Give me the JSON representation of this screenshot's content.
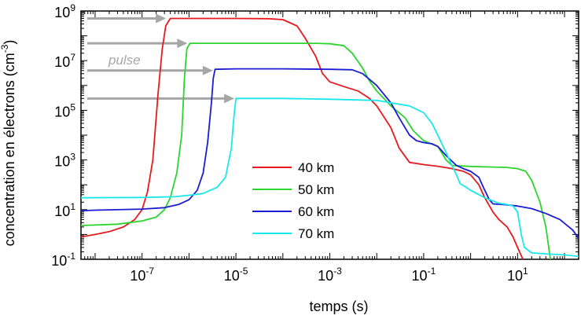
{
  "chart_data": {
    "type": "line",
    "xlabel": "temps (s)",
    "ylabel": "concentration en électrons (cm",
    "ylabel_sup": "-3",
    "ylabel_end": ")",
    "x_scale": "log",
    "y_scale": "log",
    "xlim": [
      5e-09,
      200
    ],
    "ylim": [
      0.1,
      1000000000.0
    ],
    "x_ticks": [
      {
        "value": 1e-07,
        "base": "10",
        "exp": "-7"
      },
      {
        "value": 1e-05,
        "base": "10",
        "exp": "-5"
      },
      {
        "value": 0.001,
        "base": "10",
        "exp": "-3"
      },
      {
        "value": 0.1,
        "base": "10",
        "exp": "-1"
      },
      {
        "value": 10,
        "base": "10",
        "exp": "1"
      }
    ],
    "y_ticks": [
      {
        "value": 0.1,
        "base": "10",
        "exp": "-1"
      },
      {
        "value": 10,
        "base": "10",
        "exp": "1"
      },
      {
        "value": 1000,
        "base": "10",
        "exp": "3"
      },
      {
        "value": 100000,
        "base": "10",
        "exp": "5"
      },
      {
        "value": 10000000,
        "base": "10",
        "exp": "7"
      },
      {
        "value": 1000000000,
        "base": "10",
        "exp": "9"
      }
    ],
    "legend_position": "center-left",
    "grid": false,
    "annotation": "pulse",
    "arrow_color": "#a6a6a6",
    "arrows": [
      {
        "x_start": 5e-09,
        "x_end": 3.5e-07,
        "y": 500000000.0
      },
      {
        "x_start": 5e-09,
        "x_end": 1e-06,
        "y": 50000000.0
      },
      {
        "x_start": 5e-09,
        "x_end": 3.5e-06,
        "y": 4000000.0
      },
      {
        "x_start": 5e-09,
        "x_end": 1e-05,
        "y": 300000.0
      }
    ],
    "series": [
      {
        "name": "40 km",
        "color": "#e8191c",
        "points": [
          [
            5e-09,
            0.8
          ],
          [
            1e-08,
            1.0
          ],
          [
            2e-08,
            1.3
          ],
          [
            4e-08,
            2.0
          ],
          [
            7e-08,
            4
          ],
          [
            1e-07,
            10
          ],
          [
            1.3e-07,
            50
          ],
          [
            1.7e-07,
            1000.0
          ],
          [
            2.2e-07,
            500000.0
          ],
          [
            2.7e-07,
            30000000.0
          ],
          [
            3.2e-07,
            250000000.0
          ],
          [
            4e-07,
            500000000.0
          ],
          [
            1e-06,
            500000000.0
          ],
          [
            1e-05,
            500000000.0
          ],
          [
            5e-05,
            490000000.0
          ],
          [
            0.0001,
            450000000.0
          ],
          [
            0.0002,
            250000000.0
          ],
          [
            0.0003,
            80000000.0
          ],
          [
            0.0005,
            15000000.0
          ],
          [
            0.0007,
            3000000.0
          ],
          [
            0.001,
            1400000.0
          ],
          [
            0.002,
            900000.0
          ],
          [
            0.004,
            600000.0
          ],
          [
            0.007,
            300000.0
          ],
          [
            0.01,
            150000.0
          ],
          [
            0.02,
            20000.0
          ],
          [
            0.03,
            3000.0
          ],
          [
            0.05,
            800
          ],
          [
            0.1,
            650
          ],
          [
            0.2,
            560
          ],
          [
            0.4,
            450
          ],
          [
            0.7,
            350
          ],
          [
            1,
            250
          ],
          [
            1.5,
            100
          ],
          [
            2,
            30
          ],
          [
            3,
            8
          ],
          [
            4,
            4
          ],
          [
            6,
            2
          ],
          [
            8,
            0.8
          ],
          [
            10,
            0.3
          ],
          [
            13,
            0.1
          ]
        ]
      },
      {
        "name": "50 km",
        "color": "#2cd52e",
        "points": [
          [
            5e-09,
            2.3
          ],
          [
            1e-08,
            2.4
          ],
          [
            3e-08,
            2.6
          ],
          [
            1e-07,
            3.5
          ],
          [
            2e-07,
            5
          ],
          [
            3e-07,
            10
          ],
          [
            4e-07,
            30
          ],
          [
            5.5e-07,
            300
          ],
          [
            7e-07,
            10000.0
          ],
          [
            8e-07,
            2000000.0
          ],
          [
            9e-07,
            30000000.0
          ],
          [
            1.05e-06,
            50000000.0
          ],
          [
            3e-06,
            50000000.0
          ],
          [
            0.0001,
            50000000.0
          ],
          [
            0.0005,
            50000000.0
          ],
          [
            0.001,
            48000000.0
          ],
          [
            0.002,
            40000000.0
          ],
          [
            0.003,
            20000000.0
          ],
          [
            0.005,
            5000000.0
          ],
          [
            0.007,
            1500000.0
          ],
          [
            0.01,
            600000.0
          ],
          [
            0.02,
            150000.0
          ],
          [
            0.04,
            50000.0
          ],
          [
            0.06,
            15000.0
          ],
          [
            0.1,
            6000.0
          ],
          [
            0.2,
            3500.0
          ],
          [
            0.3,
            1000.0
          ],
          [
            0.4,
            600
          ],
          [
            1,
            550
          ],
          [
            3,
            520
          ],
          [
            6,
            500
          ],
          [
            10,
            450
          ],
          [
            15,
            350
          ],
          [
            20,
            150
          ],
          [
            30,
            20
          ],
          [
            40,
            2
          ],
          [
            50,
            0.1
          ]
        ]
      },
      {
        "name": "60 km",
        "color": "#1c1cd4",
        "points": [
          [
            5e-09,
            9
          ],
          [
            1e-08,
            9.5
          ],
          [
            1e-07,
            10.5
          ],
          [
            3e-07,
            12
          ],
          [
            6e-07,
            16
          ],
          [
            1e-06,
            25
          ],
          [
            1.5e-06,
            60
          ],
          [
            2e-06,
            300
          ],
          [
            2.5e-06,
            5000.0
          ],
          [
            3e-06,
            200000.0
          ],
          [
            3.3e-06,
            2000000.0
          ],
          [
            3.6e-06,
            4500000.0
          ],
          [
            1e-05,
            4700000.0
          ],
          [
            0.0001,
            4700000.0
          ],
          [
            0.001,
            4500000.0
          ],
          [
            0.003,
            4300000.0
          ],
          [
            0.005,
            3000000.0
          ],
          [
            0.01,
            1000000.0
          ],
          [
            0.02,
            200000.0
          ],
          [
            0.03,
            50000.0
          ],
          [
            0.05,
            10000.0
          ],
          [
            0.07,
            6000.0
          ],
          [
            0.1,
            5000.0
          ],
          [
            0.15,
            4500.0
          ],
          [
            0.2,
            3500.0
          ],
          [
            0.3,
            1500.0
          ],
          [
            0.5,
            600
          ],
          [
            0.7,
            450
          ],
          [
            1,
            350
          ],
          [
            1.5,
            200
          ],
          [
            2,
            60
          ],
          [
            2.5,
            25
          ],
          [
            3,
            17
          ],
          [
            5,
            16
          ],
          [
            10,
            14
          ],
          [
            20,
            11
          ],
          [
            40,
            7
          ],
          [
            80,
            4
          ],
          [
            150,
            1.5
          ],
          [
            200,
            0.7
          ]
        ]
      },
      {
        "name": "70 km",
        "color": "#18e8ec",
        "points": [
          [
            5e-09,
            30
          ],
          [
            1e-07,
            31
          ],
          [
            5e-07,
            33
          ],
          [
            1e-06,
            38
          ],
          [
            2e-06,
            45
          ],
          [
            4e-06,
            80
          ],
          [
            6e-06,
            200
          ],
          [
            8e-06,
            3000.0
          ],
          [
            9e-06,
            50000.0
          ],
          [
            1e-05,
            300000.0
          ],
          [
            0.0001,
            300000.0
          ],
          [
            0.001,
            280000.0
          ],
          [
            0.01,
            250000.0
          ],
          [
            0.02,
            200000.0
          ],
          [
            0.05,
            150000.0
          ],
          [
            0.1,
            80000.0
          ],
          [
            0.15,
            30000.0
          ],
          [
            0.2,
            10000.0
          ],
          [
            0.3,
            2000.0
          ],
          [
            0.4,
            600
          ],
          [
            0.5,
            250
          ],
          [
            0.6,
            110
          ],
          [
            0.8,
            80
          ],
          [
            1,
            60
          ],
          [
            2,
            30
          ],
          [
            4,
            18
          ],
          [
            6,
            16
          ],
          [
            8,
            14
          ],
          [
            10,
            8
          ],
          [
            12,
            1
          ],
          [
            14,
            0.3
          ],
          [
            20,
            0.18
          ],
          [
            50,
            0.16
          ],
          [
            100,
            0.15
          ],
          [
            200,
            0.13
          ]
        ]
      }
    ]
  }
}
